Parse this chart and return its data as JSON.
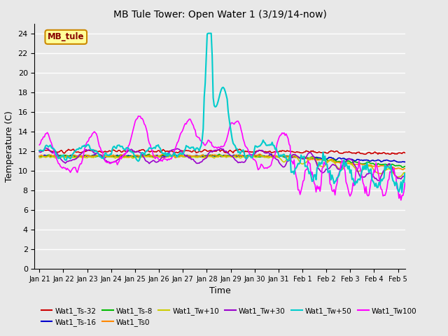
{
  "title": "MB Tule Tower: Open Water 1 (3/19/14-now)",
  "xlabel": "Time",
  "ylabel": "Temperature (C)",
  "ylim": [
    0,
    25
  ],
  "yticks": [
    0,
    2,
    4,
    6,
    8,
    10,
    12,
    14,
    16,
    18,
    20,
    22,
    24
  ],
  "plot_bg_color": "#e8e8e8",
  "grid_color": "#ffffff",
  "series": [
    {
      "label": "Wat1_Ts-32",
      "color": "#cc0000",
      "lw": 1.2
    },
    {
      "label": "Wat1_Ts-16",
      "color": "#0000cc",
      "lw": 1.2
    },
    {
      "label": "Wat1_Ts-8",
      "color": "#00bb00",
      "lw": 1.2
    },
    {
      "label": "Wat1_Ts0",
      "color": "#ff8800",
      "lw": 1.2
    },
    {
      "label": "Wat1_Tw+10",
      "color": "#cccc00",
      "lw": 1.2
    },
    {
      "label": "Wat1_Tw+30",
      "color": "#9900cc",
      "lw": 1.2
    },
    {
      "label": "Wat1_Tw+50",
      "color": "#00cccc",
      "lw": 1.5
    },
    {
      "label": "Wat1_Tw100",
      "color": "#ff00ff",
      "lw": 1.2
    }
  ],
  "watermark_text": "MB_tule",
  "watermark_color": "#880000",
  "watermark_bg": "#ffff99",
  "watermark_border": "#cc8800"
}
